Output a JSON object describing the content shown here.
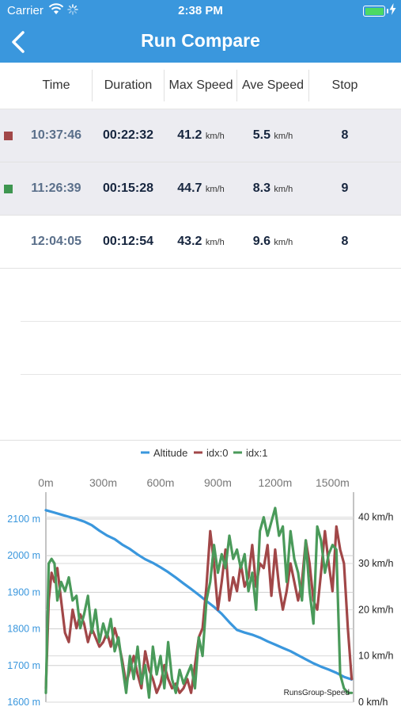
{
  "status_bar": {
    "carrier": "Carrier",
    "time": "2:38 PM",
    "icons": [
      "wifi-icon",
      "activity-spinner-icon",
      "battery-icon",
      "charging-bolt-icon"
    ]
  },
  "nav": {
    "title": "Run Compare",
    "back_icon": "chevron-left-icon",
    "color": "#3a97dd"
  },
  "table": {
    "columns": [
      "Time",
      "Duration",
      "Max Speed",
      "Ave Speed",
      "Stop"
    ],
    "rows": [
      {
        "marker_color": "#a14748",
        "selected": true,
        "time": "10:37:46",
        "duration": "00:22:32",
        "max_speed": "41.2",
        "max_unit": "km/h",
        "ave_speed": "5.5",
        "ave_unit": "km/h",
        "stop": "8"
      },
      {
        "marker_color": "#3e9650",
        "selected": true,
        "time": "11:26:39",
        "duration": "00:15:28",
        "max_speed": "44.7",
        "max_unit": "km/h",
        "ave_speed": "8.3",
        "ave_unit": "km/h",
        "stop": "9"
      },
      {
        "marker_color": null,
        "selected": false,
        "time": "12:04:05",
        "duration": "00:12:54",
        "max_speed": "43.2",
        "max_unit": "km/h",
        "ave_speed": "9.6",
        "ave_unit": "km/h",
        "stop": "8"
      }
    ]
  },
  "chart_data": {
    "type": "line",
    "legend": [
      {
        "name": "Altitude",
        "color": "#3a97dd"
      },
      {
        "name": "idx:0",
        "color": "#a14748"
      },
      {
        "name": "idx:1",
        "color": "#4a9a5a"
      }
    ],
    "legend_position": "top-center",
    "x_ticks": [
      "0m",
      "300m",
      "600m",
      "900m",
      "1200m",
      "1500m"
    ],
    "x_tick_values": [
      0,
      300,
      600,
      900,
      1200,
      1500
    ],
    "xlim": [
      0,
      1610
    ],
    "y_left_ticks": [
      "2100 m",
      "2000 m",
      "1900 m",
      "1800 m",
      "1700 m",
      "1600 m"
    ],
    "y_left_values": [
      2100,
      2000,
      1900,
      1800,
      1700,
      1600
    ],
    "ylim_left": [
      1600,
      2130
    ],
    "y_right_ticks": [
      "40 km/h",
      "30 km/h",
      "20 km/h",
      "10 km/h",
      "0 km/h"
    ],
    "y_right_values": [
      40,
      30,
      20,
      10,
      0
    ],
    "ylim_right": [
      0,
      42
    ],
    "caption": "RunsGroup-Speed",
    "grid": true,
    "series": [
      {
        "name": "Altitude",
        "axis": "left",
        "x": [
          0,
          40,
          80,
          120,
          160,
          200,
          240,
          280,
          320,
          360,
          400,
          440,
          480,
          520,
          560,
          600,
          640,
          680,
          720,
          760,
          800,
          840,
          880,
          920,
          960,
          1000,
          1040,
          1080,
          1120,
          1160,
          1200,
          1240,
          1280,
          1320,
          1360,
          1400,
          1440,
          1480,
          1520,
          1560,
          1600
        ],
        "values": [
          2124,
          2118,
          2112,
          2106,
          2100,
          2093,
          2083,
          2068,
          2055,
          2045,
          2030,
          2018,
          2003,
          1990,
          1980,
          1968,
          1955,
          1940,
          1924,
          1909,
          1893,
          1876,
          1860,
          1841,
          1818,
          1797,
          1790,
          1784,
          1776,
          1766,
          1757,
          1748,
          1739,
          1728,
          1717,
          1706,
          1697,
          1689,
          1680,
          1669,
          1662
        ]
      },
      {
        "name": "idx:0",
        "axis": "right",
        "x": [
          0,
          15,
          30,
          45,
          60,
          80,
          100,
          120,
          140,
          160,
          180,
          200,
          220,
          240,
          260,
          280,
          300,
          320,
          340,
          360,
          380,
          400,
          420,
          440,
          460,
          480,
          500,
          520,
          540,
          560,
          580,
          600,
          620,
          640,
          660,
          680,
          700,
          720,
          740,
          760,
          780,
          800,
          820,
          840,
          860,
          880,
          900,
          920,
          940,
          960,
          980,
          1000,
          1020,
          1040,
          1060,
          1080,
          1100,
          1120,
          1140,
          1160,
          1180,
          1200,
          1220,
          1240,
          1260,
          1280,
          1300,
          1320,
          1340,
          1360,
          1380,
          1400,
          1420,
          1440,
          1460,
          1480,
          1500,
          1520,
          1540,
          1560,
          1580,
          1600
        ],
        "values": [
          3,
          22,
          28,
          26,
          29,
          22,
          15,
          13,
          20,
          16,
          19,
          17,
          13,
          16,
          14,
          12,
          13,
          15,
          12,
          16,
          13,
          9,
          4,
          7,
          10,
          6,
          3,
          11,
          7,
          5,
          2,
          4,
          8,
          5,
          3,
          4,
          2,
          3,
          5,
          2,
          8,
          14,
          16,
          25,
          37,
          30,
          20,
          26,
          33,
          22,
          27,
          24,
          30,
          25,
          27,
          34,
          25,
          30,
          29,
          34,
          23,
          33,
          25,
          20,
          24,
          30,
          26,
          22,
          26,
          35,
          30,
          22,
          20,
          28,
          37,
          30,
          24,
          38,
          33,
          30,
          16,
          5
        ]
      },
      {
        "name": "idx:1",
        "axis": "right",
        "x": [
          0,
          15,
          30,
          45,
          60,
          80,
          100,
          120,
          140,
          160,
          180,
          200,
          220,
          240,
          260,
          280,
          300,
          320,
          340,
          360,
          380,
          400,
          420,
          440,
          460,
          480,
          500,
          520,
          540,
          560,
          580,
          600,
          620,
          640,
          660,
          680,
          700,
          720,
          740,
          760,
          780,
          800,
          820,
          840,
          860,
          880,
          900,
          920,
          940,
          960,
          980,
          1000,
          1020,
          1040,
          1060,
          1080,
          1100,
          1120,
          1140,
          1160,
          1180,
          1200,
          1220,
          1240,
          1260,
          1280,
          1300,
          1320,
          1340,
          1360,
          1380,
          1400,
          1420,
          1440,
          1460,
          1480,
          1500,
          1520,
          1540,
          1560,
          1580,
          1600
        ],
        "values": [
          2,
          30,
          31,
          30,
          22,
          26,
          24,
          27,
          22,
          23,
          16,
          19,
          23,
          15,
          20,
          13,
          17,
          14,
          18,
          11,
          14,
          8,
          2,
          10,
          5,
          12,
          4,
          8,
          1,
          12,
          6,
          10,
          3,
          13,
          5,
          2,
          7,
          4,
          6,
          8,
          3,
          14,
          10,
          22,
          26,
          34,
          28,
          32,
          29,
          36,
          31,
          33,
          29,
          32,
          24,
          28,
          20,
          37,
          40,
          36,
          39,
          42,
          36,
          38,
          26,
          37,
          31,
          28,
          22,
          35,
          24,
          17,
          38,
          35,
          28,
          32,
          34,
          33,
          6,
          3,
          2,
          2
        ]
      }
    ]
  }
}
